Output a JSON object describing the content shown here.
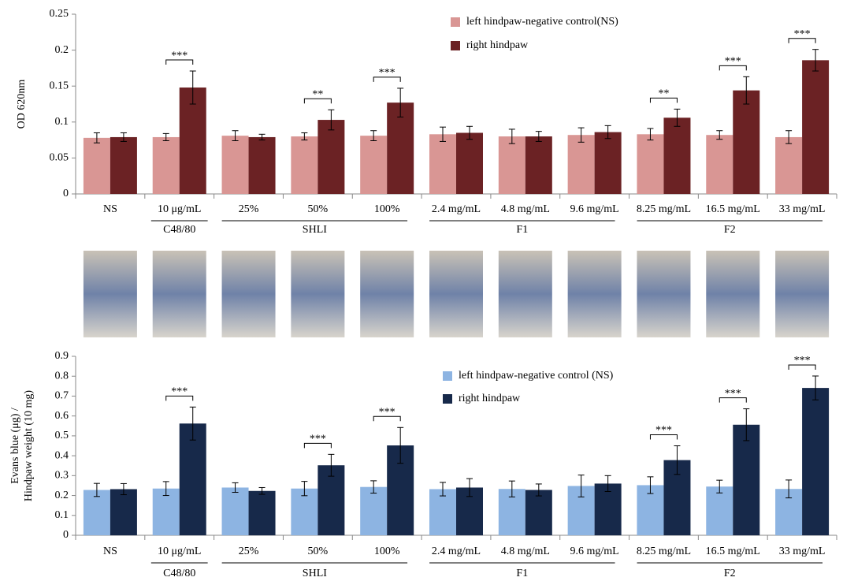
{
  "chart_data": [
    {
      "type": "bar",
      "ylabel": "OD 620nm",
      "categories": [
        "NS",
        "10 μg/mL",
        "25%",
        "50%",
        "100%",
        "2.4 mg/mL",
        "4.8 mg/mL",
        "9.6 mg/mL",
        "8.25 mg/mL",
        "16.5 mg/mL",
        "33 mg/mL"
      ],
      "series": [
        {
          "name": "left hindpaw-negative control(NS)",
          "color": "#d99694",
          "values": [
            0.078,
            0.079,
            0.081,
            0.08,
            0.081,
            0.083,
            0.08,
            0.082,
            0.083,
            0.082,
            0.079
          ],
          "errors": [
            0.007,
            0.005,
            0.007,
            0.005,
            0.007,
            0.01,
            0.01,
            0.01,
            0.008,
            0.006,
            0.009
          ]
        },
        {
          "name": "right hindpaw",
          "color": "#6b2224",
          "values": [
            0.079,
            0.148,
            0.079,
            0.103,
            0.127,
            0.085,
            0.08,
            0.086,
            0.106,
            0.144,
            0.186
          ],
          "errors": [
            0.006,
            0.023,
            0.004,
            0.014,
            0.02,
            0.009,
            0.007,
            0.009,
            0.012,
            0.019,
            0.015
          ]
        }
      ],
      "ylim": [
        0,
        0.25
      ],
      "yticks": [
        0,
        0.05,
        0.1,
        0.15,
        0.2,
        0.25
      ],
      "groups": [
        {
          "label": "C48/80",
          "members": [
            "10 μg/mL"
          ]
        },
        {
          "label": "SHLI",
          "members": [
            "25%",
            "50%",
            "100%"
          ]
        },
        {
          "label": "F1",
          "members": [
            "2.4 mg/mL",
            "4.8 mg/mL",
            "9.6 mg/mL"
          ]
        },
        {
          "label": "F2",
          "members": [
            "8.25 mg/mL",
            "16.5 mg/mL",
            "33 mg/mL"
          ]
        }
      ],
      "annotations": [
        {
          "text": "***",
          "category": "10 μg/mL"
        },
        {
          "text": "**",
          "category": "50%"
        },
        {
          "text": "***",
          "category": "100%"
        },
        {
          "text": "**",
          "category": "8.25 mg/mL"
        },
        {
          "text": "***",
          "category": "16.5 mg/mL"
        },
        {
          "text": "***",
          "category": "33 mg/mL"
        }
      ]
    },
    {
      "type": "bar",
      "ylabel": [
        "Evans blue (μg) /",
        "Hindpaw weight (10 mg)"
      ],
      "categories": [
        "NS",
        "10 μg/mL",
        "25%",
        "50%",
        "100%",
        "2.4 mg/mL",
        "4.8 mg/mL",
        "9.6 mg/mL",
        "8.25 mg/mL",
        "16.5 mg/mL",
        "33 mg/mL"
      ],
      "series": [
        {
          "name": "left hindpaw-negative control (NS)",
          "color": "#8db4e2",
          "values": [
            0.228,
            0.235,
            0.24,
            0.235,
            0.243,
            0.232,
            0.233,
            0.248,
            0.252,
            0.245,
            0.233
          ],
          "errors": [
            0.033,
            0.035,
            0.024,
            0.036,
            0.031,
            0.034,
            0.04,
            0.055,
            0.042,
            0.032,
            0.045
          ]
        },
        {
          "name": "right hindpaw",
          "color": "#17294a",
          "values": [
            0.232,
            0.562,
            0.223,
            0.352,
            0.452,
            0.24,
            0.228,
            0.26,
            0.378,
            0.556,
            0.741
          ],
          "errors": [
            0.028,
            0.083,
            0.017,
            0.055,
            0.09,
            0.045,
            0.03,
            0.04,
            0.072,
            0.08,
            0.06
          ]
        }
      ],
      "ylim": [
        0,
        0.9
      ],
      "yticks": [
        0,
        0.1,
        0.2,
        0.3,
        0.4,
        0.5,
        0.6,
        0.7,
        0.8,
        0.9
      ],
      "groups": [
        {
          "label": "C48/80",
          "members": [
            "10 μg/mL"
          ]
        },
        {
          "label": "SHLI",
          "members": [
            "25%",
            "50%",
            "100%"
          ]
        },
        {
          "label": "F1",
          "members": [
            "2.4 mg/mL",
            "4.8 mg/mL",
            "9.6 mg/mL"
          ]
        },
        {
          "label": "F2",
          "members": [
            "8.25 mg/mL",
            "16.5 mg/mL",
            "33 mg/mL"
          ]
        }
      ],
      "annotations": [
        {
          "text": "***",
          "category": "10 μg/mL"
        },
        {
          "text": "***",
          "category": "50%"
        },
        {
          "text": "***",
          "category": "100%"
        },
        {
          "text": "***",
          "category": "8.25 mg/mL"
        },
        {
          "text": "***",
          "category": "16.5 mg/mL"
        },
        {
          "text": "***",
          "category": "33 mg/mL"
        }
      ]
    }
  ]
}
